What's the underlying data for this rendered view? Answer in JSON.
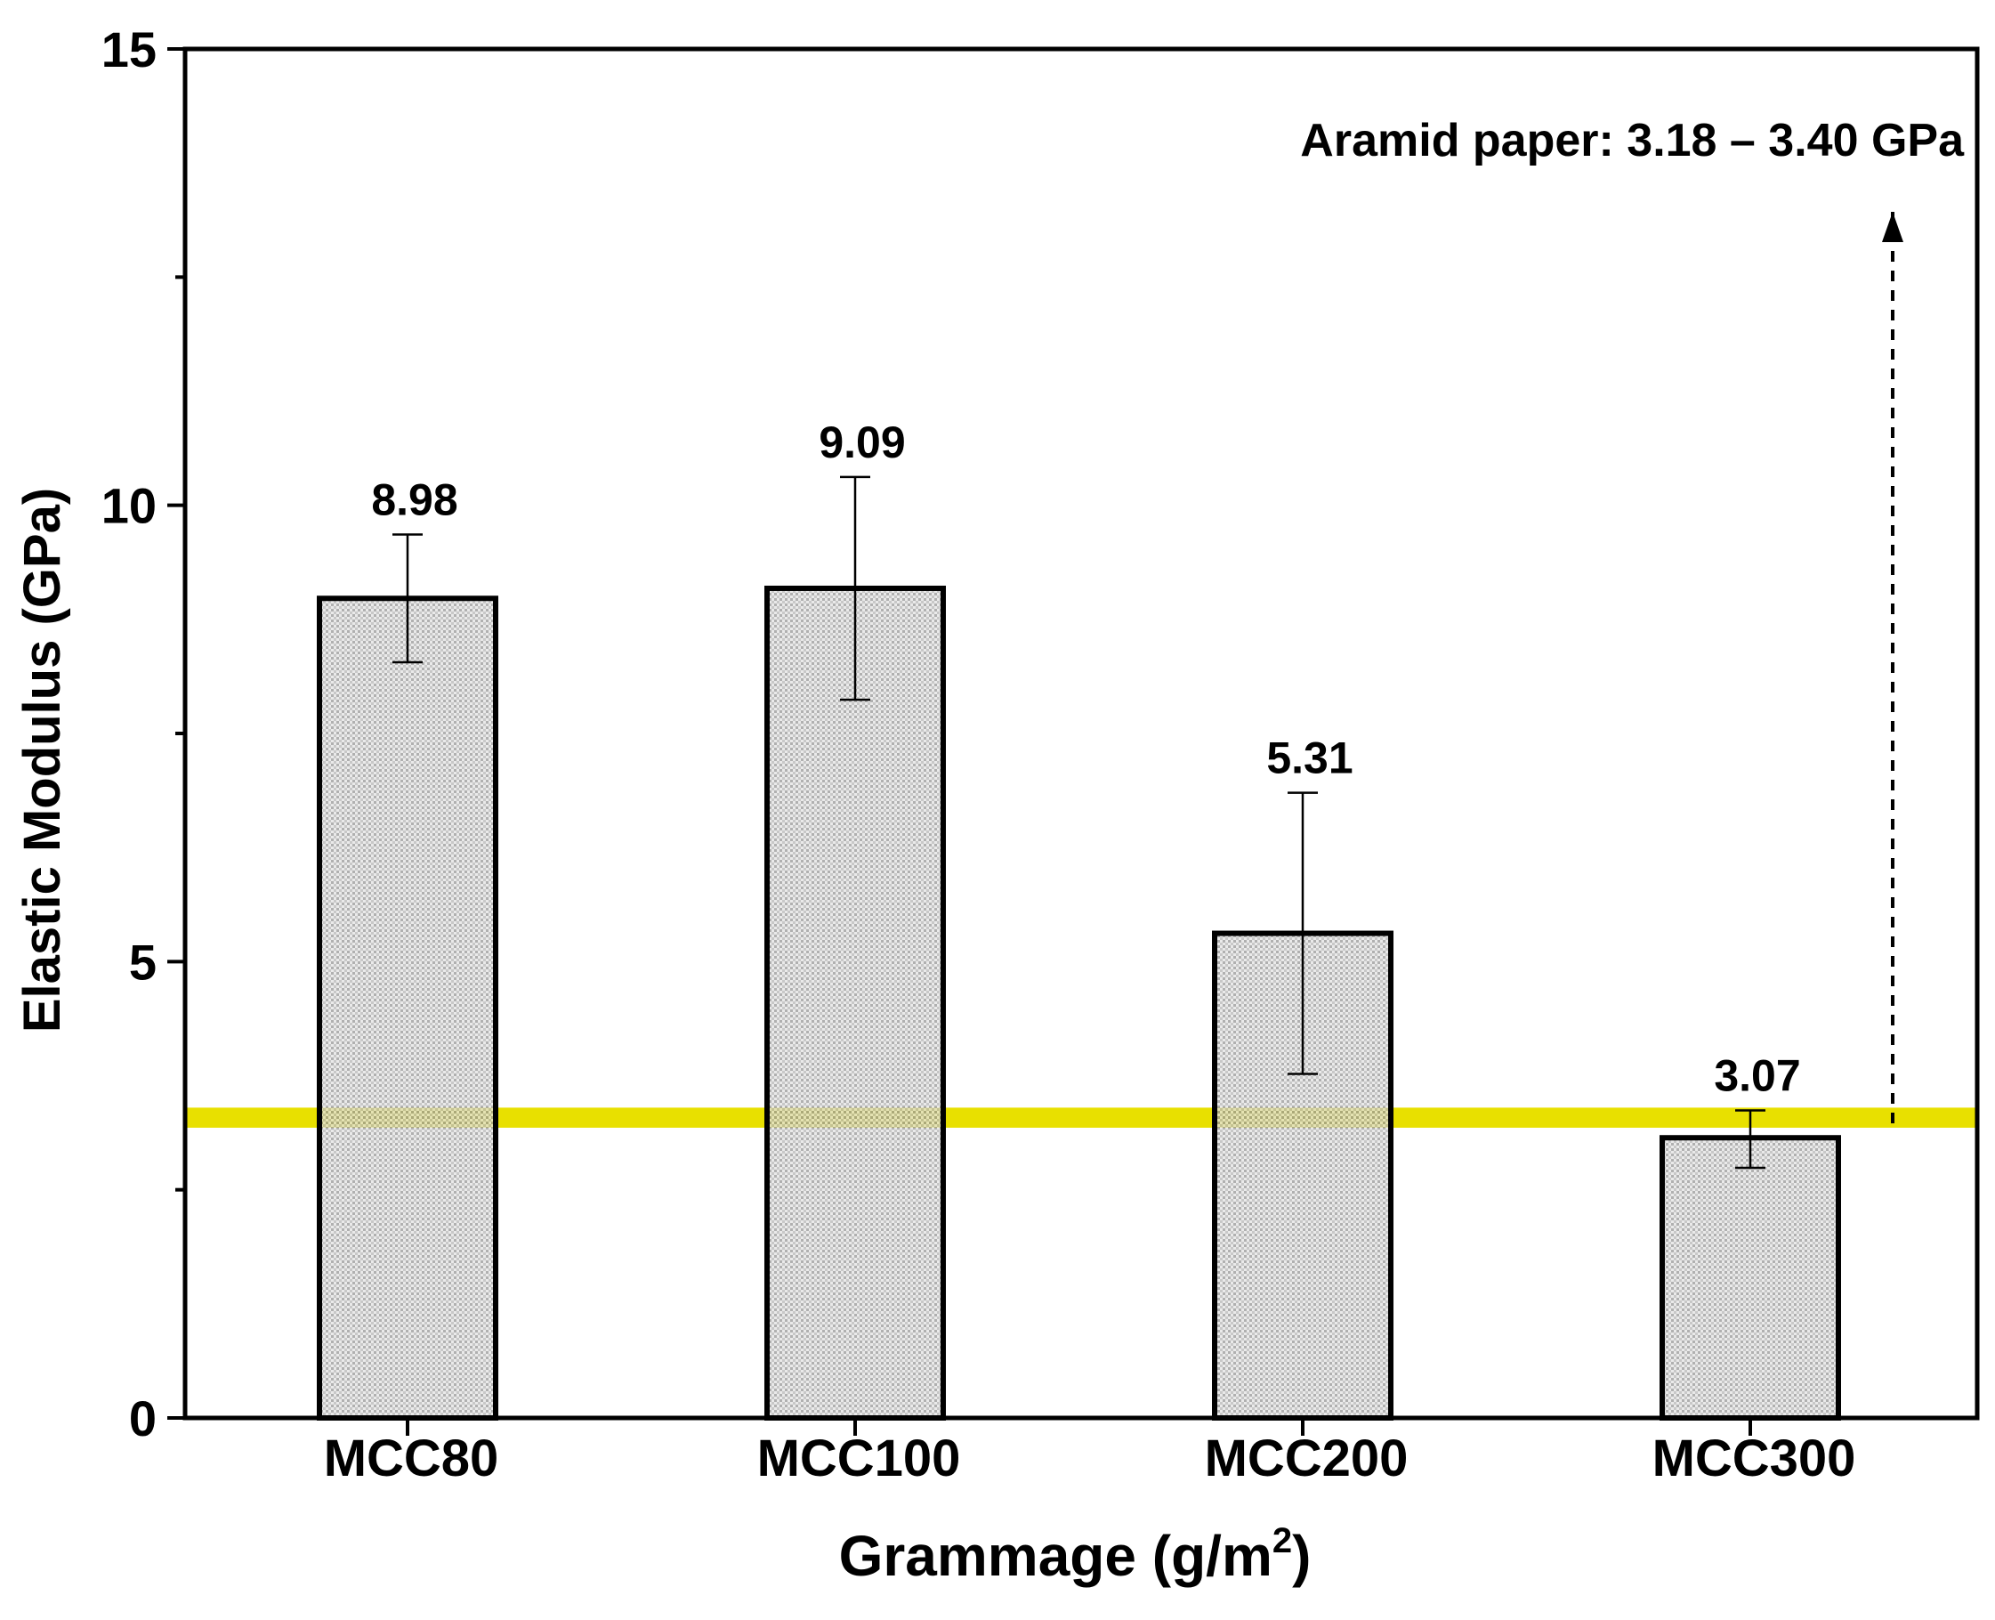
{
  "chart_data": {
    "type": "bar",
    "title": "",
    "xlabel": "Grammage (g/m",
    "xlabel_superscript": "2",
    "xlabel_close": ")",
    "ylabel": "Elastic Modulus (GPa)",
    "ylim": [
      0,
      15
    ],
    "yticks": [
      0,
      5,
      10,
      15
    ],
    "yticks_minor": [
      2.5,
      7.5,
      12.5
    ],
    "grid": false,
    "categories": [
      "MCC80",
      "MCC100",
      "MCC200",
      "MCC300"
    ],
    "values": [
      8.98,
      9.09,
      5.31,
      3.07
    ],
    "value_labels": [
      "8.98",
      "9.09",
      "5.31",
      "3.07"
    ],
    "error_low": [
      8.28,
      7.87,
      3.77,
      2.74
    ],
    "error_high": [
      9.68,
      10.31,
      6.85,
      3.37
    ],
    "reference_band": {
      "label": "Aramid paper: 3.18 – 3.40 GPa",
      "low": 3.18,
      "high": 3.4,
      "color": "#e8e000"
    },
    "bar_fill": "#d6d6d6",
    "bar_edge": "#000000"
  }
}
